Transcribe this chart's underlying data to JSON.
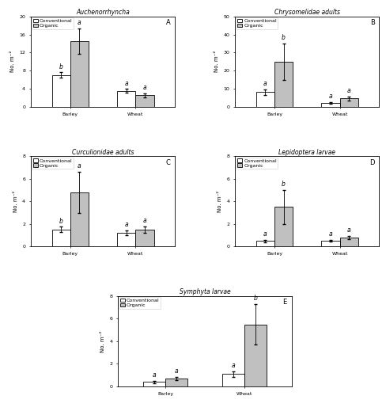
{
  "panels": [
    {
      "title": "Auchenorrhyncha",
      "label": "A",
      "ylabel": "No. m⁻²",
      "ylim": [
        0,
        20
      ],
      "yticks": [
        0,
        4,
        8,
        12,
        16,
        20
      ],
      "locations": [
        "Barley",
        "Wheat"
      ],
      "conventional": [
        7.0,
        3.5
      ],
      "organic": [
        14.5,
        2.5
      ],
      "conv_err": [
        0.6,
        0.4
      ],
      "org_err": [
        2.8,
        0.4
      ],
      "conv_letters": [
        "b",
        "a"
      ],
      "org_letters": [
        "a",
        "a"
      ]
    },
    {
      "title": "Chrysomelidae adults",
      "label": "B",
      "ylabel": "No. m⁻²",
      "ylim": [
        0,
        50
      ],
      "yticks": [
        0,
        10,
        20,
        30,
        40,
        50
      ],
      "locations": [
        "Barley",
        "Wheat"
      ],
      "conventional": [
        8.0,
        2.0
      ],
      "organic": [
        25.0,
        4.5
      ],
      "conv_err": [
        1.5,
        0.4
      ],
      "org_err": [
        10.0,
        1.0
      ],
      "conv_letters": [
        "a",
        "a"
      ],
      "org_letters": [
        "b",
        "a"
      ]
    },
    {
      "title": "Curculionidae adults",
      "label": "C",
      "ylabel": "No. m⁻²",
      "ylim": [
        0,
        8
      ],
      "yticks": [
        0,
        2,
        4,
        6,
        8
      ],
      "locations": [
        "Barley",
        "Wheat"
      ],
      "conventional": [
        1.5,
        1.2
      ],
      "organic": [
        4.8,
        1.5
      ],
      "conv_err": [
        0.25,
        0.2
      ],
      "org_err": [
        1.8,
        0.3
      ],
      "conv_letters": [
        "b",
        "a"
      ],
      "org_letters": [
        "a",
        "a"
      ]
    },
    {
      "title": "Lepidoptera larvae",
      "label": "D",
      "ylabel": "No. m⁻²",
      "ylim": [
        0,
        8
      ],
      "yticks": [
        0,
        2,
        4,
        6,
        8
      ],
      "locations": [
        "Barley",
        "Wheat"
      ],
      "conventional": [
        0.5,
        0.5
      ],
      "organic": [
        3.5,
        0.8
      ],
      "conv_err": [
        0.1,
        0.08
      ],
      "org_err": [
        1.5,
        0.15
      ],
      "conv_letters": [
        "a",
        "a"
      ],
      "org_letters": [
        "b",
        "a"
      ]
    },
    {
      "title": "Symphyta larvae",
      "label": "E",
      "ylabel": "No. m⁻²",
      "ylim": [
        0,
        8
      ],
      "yticks": [
        0,
        2,
        4,
        6,
        8
      ],
      "locations": [
        "Barley",
        "Wheat"
      ],
      "conventional": [
        0.4,
        1.1
      ],
      "organic": [
        0.7,
        5.5
      ],
      "conv_err": [
        0.1,
        0.25
      ],
      "org_err": [
        0.15,
        1.8
      ],
      "conv_letters": [
        "a",
        "a"
      ],
      "org_letters": [
        "a",
        "b"
      ]
    }
  ],
  "conv_color": "#ffffff",
  "org_color": "#c0c0c0",
  "conv_edge": "#000000",
  "org_edge": "#000000",
  "bar_width": 0.28,
  "legend_labels": [
    "Conventional",
    "Organic"
  ],
  "fontsize_title": 5.5,
  "fontsize_label": 5,
  "fontsize_tick": 4.5,
  "fontsize_letter": 5.5
}
